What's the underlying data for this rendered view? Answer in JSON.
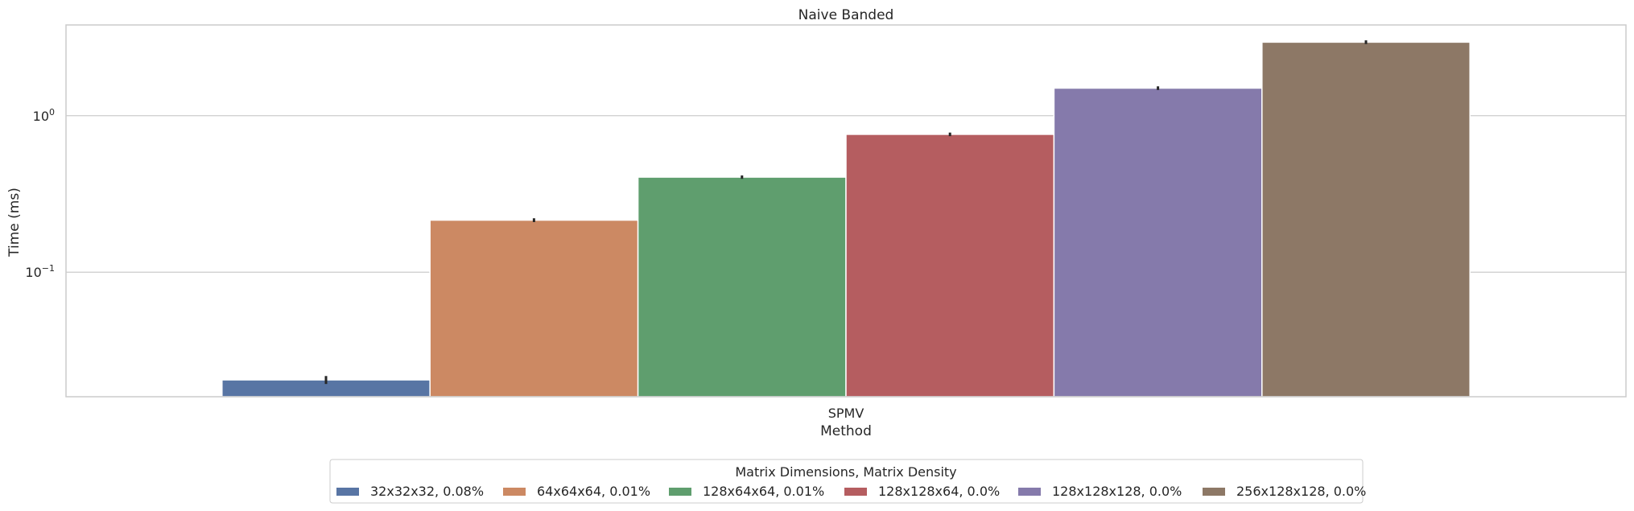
{
  "chart_data": {
    "type": "bar",
    "title": "Naive Banded",
    "xlabel": "Method",
    "ylabel": "Time (ms)",
    "yscale": "log",
    "ylim": [
      0.016,
      3.8
    ],
    "grid": true,
    "categories": [
      "SPMV"
    ],
    "yticks": [
      {
        "value": 0.1,
        "base": "10",
        "exp": "−1"
      },
      {
        "value": 1,
        "base": "10",
        "exp": "0"
      }
    ],
    "legend": {
      "title": "Matrix Dimensions, Matrix Density",
      "placement": "bottom-center"
    },
    "series": [
      {
        "name": "32x32x32, 0.08%",
        "values": [
          0.0205
        ],
        "err": [
          0.0012
        ],
        "color": "#5875a4"
      },
      {
        "name": "64x64x64, 0.01%",
        "values": [
          0.215
        ],
        "err": [
          0.006
        ],
        "color": "#cc8963"
      },
      {
        "name": "128x64x64, 0.01%",
        "values": [
          0.405
        ],
        "err": [
          0.01
        ],
        "color": "#5f9e6e"
      },
      {
        "name": "128x128x64, 0.0%",
        "values": [
          0.76
        ],
        "err": [
          0.02
        ],
        "color": "#b55d60"
      },
      {
        "name": "128x128x128, 0.0%",
        "values": [
          1.5
        ],
        "err": [
          0.04
        ],
        "color": "#857aab"
      },
      {
        "name": "256x128x128, 0.0%",
        "values": [
          2.95
        ],
        "err": [
          0.08
        ],
        "color": "#8d7866"
      }
    ]
  }
}
